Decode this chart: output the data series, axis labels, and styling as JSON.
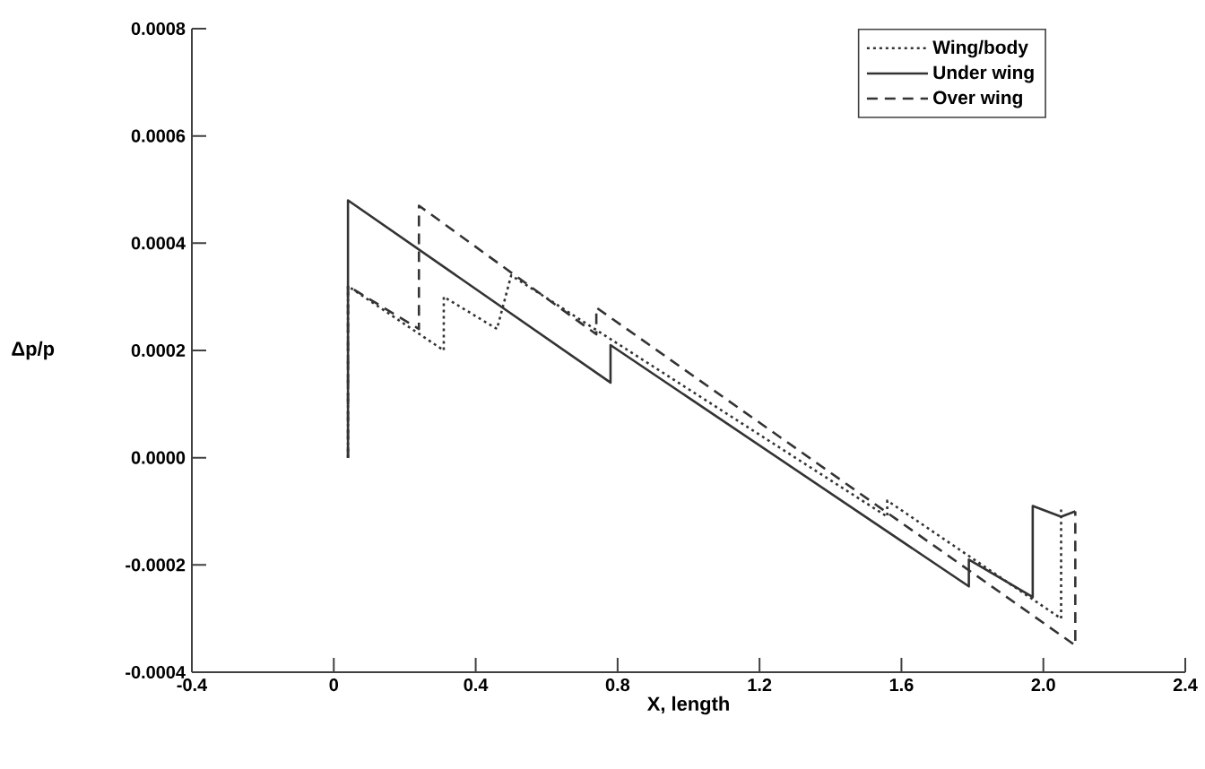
{
  "chart_data": {
    "type": "line",
    "xlabel": "X, length",
    "ylabel": "Δp/p",
    "xlim": [
      -0.4,
      2.4
    ],
    "ylim": [
      -0.0004,
      0.0008
    ],
    "xticks": [
      -0.4,
      0,
      0.4,
      0.8,
      1.2,
      1.6,
      {
        "value": 2.0,
        "label": "2.0"
      },
      2.4
    ],
    "yticks": [
      {
        "value": -0.0004,
        "label": "-0.0004"
      },
      {
        "value": -0.0002,
        "label": "-0.0002"
      },
      {
        "value": 0,
        "label": "0.0000"
      },
      {
        "value": 0.0002,
        "label": "0.0002"
      },
      {
        "value": 0.0004,
        "label": "0.0004"
      },
      {
        "value": 0.0006,
        "label": "0.0006"
      },
      {
        "value": 0.0008,
        "label": "0.0008"
      }
    ],
    "grid": false,
    "legend": "top right",
    "marker": "none",
    "series": [
      {
        "name": "Wing/body",
        "color": "#333333",
        "line_style": "dotted",
        "x": [
          0.04,
          0.04,
          0.31,
          0.31,
          0.46,
          0.5,
          1.56,
          1.56,
          2.05,
          2.05
        ],
        "values": [
          0,
          0.00032,
          0.0002,
          0.0003,
          0.00024,
          0.00034,
          -0.00011,
          -8e-05,
          -0.0003,
          -9e-05
        ]
      },
      {
        "name": "Under wing",
        "color": "#333333",
        "line_style": "solid",
        "x": [
          0.04,
          0.04,
          0.78,
          0.78,
          1.79,
          1.79,
          1.97,
          1.97,
          2.05,
          2.09
        ],
        "values": [
          0,
          0.00048,
          0.00014,
          0.00021,
          -0.00024,
          -0.00019,
          -0.00026,
          -9e-05,
          -0.00011,
          -0.0001
        ]
      },
      {
        "name": "Over wing",
        "color": "#333333",
        "line_style": "dashed",
        "x": [
          0.04,
          0.04,
          0.24,
          0.24,
          0.74,
          0.74,
          2.09,
          2.09
        ],
        "values": [
          0,
          0.00032,
          0.00024,
          0.00047,
          0.00023,
          0.00028,
          -0.00035,
          -0.0001
        ]
      }
    ]
  }
}
